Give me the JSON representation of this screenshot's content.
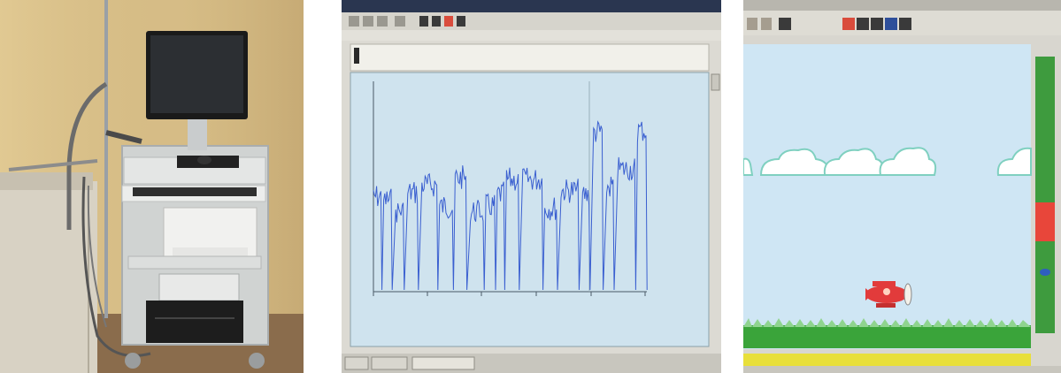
{
  "panels": [
    {
      "id": "equipment-photo"
    },
    {
      "id": "signal-monitor-photo",
      "label_ylevel": "",
      "label_right": "",
      "x_unit": ""
    },
    {
      "id": "game-screen-photo"
    }
  ],
  "colors": {
    "wall": "#d9c08a",
    "monitor_bg": "#cfe3ee",
    "signal_line": "#3a5fd0",
    "sky": "#cfe6f4",
    "grass": "#3aa43a",
    "ground_bar": "#e8df3a",
    "plane": "#e23b3b",
    "score_green": "#3e9b3e",
    "score_red": "#e8463a"
  }
}
